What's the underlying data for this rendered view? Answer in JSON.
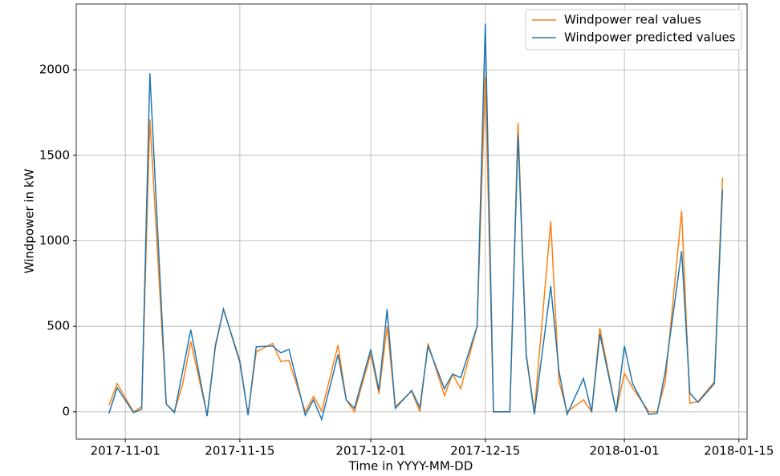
{
  "chart_data": {
    "type": "line",
    "xlabel": "Time in YYYY-MM-DD",
    "ylabel": "Windpower in kW",
    "x": [
      "2017-10-30",
      "2017-10-31",
      "2017-11-02",
      "2017-11-03",
      "2017-11-04",
      "2017-11-06",
      "2017-11-07",
      "2017-11-08",
      "2017-11-09",
      "2017-11-11",
      "2017-11-12",
      "2017-11-13",
      "2017-11-15",
      "2017-11-16",
      "2017-11-17",
      "2017-11-19",
      "2017-11-20",
      "2017-11-21",
      "2017-11-23",
      "2017-11-24",
      "2017-11-25",
      "2017-11-27",
      "2017-11-28",
      "2017-11-29",
      "2017-12-01",
      "2017-12-02",
      "2017-12-03",
      "2017-12-04",
      "2017-12-06",
      "2017-12-07",
      "2017-12-08",
      "2017-12-10",
      "2017-12-11",
      "2017-12-12",
      "2017-12-14",
      "2017-12-15",
      "2017-12-16",
      "2017-12-18",
      "2017-12-19",
      "2017-12-20",
      "2017-12-21",
      "2017-12-23",
      "2017-12-24",
      "2017-12-25",
      "2017-12-27",
      "2017-12-28",
      "2017-12-29",
      "2017-12-31",
      "2018-01-01",
      "2018-01-02",
      "2018-01-04",
      "2018-01-05",
      "2018-01-06",
      "2018-01-08",
      "2018-01-09",
      "2018-01-10",
      "2018-01-12",
      "2018-01-13"
    ],
    "series": [
      {
        "name": "Windpower real values",
        "color": "#ff7f0e",
        "values": [
          35,
          165,
          0,
          30,
          1710,
          45,
          0,
          160,
          410,
          -20,
          390,
          600,
          300,
          -15,
          350,
          400,
          295,
          300,
          0,
          90,
          5,
          390,
          70,
          0,
          340,
          105,
          500,
          30,
          120,
          0,
          400,
          95,
          220,
          135,
          500,
          1960,
          0,
          0,
          1690,
          340,
          0,
          1115,
          180,
          0,
          70,
          0,
          490,
          0,
          225,
          140,
          0,
          0,
          175,
          1175,
          50,
          60,
          175,
          1370
        ]
      },
      {
        "name": "Windpower predicted values",
        "color": "#1f77b4",
        "values": [
          -10,
          140,
          -5,
          15,
          1980,
          45,
          -5,
          235,
          480,
          -25,
          380,
          600,
          290,
          -20,
          380,
          385,
          345,
          365,
          -20,
          70,
          -45,
          335,
          70,
          20,
          365,
          125,
          600,
          20,
          125,
          25,
          385,
          135,
          220,
          200,
          500,
          2270,
          0,
          0,
          1620,
          330,
          -15,
          735,
          240,
          -15,
          195,
          0,
          455,
          0,
          385,
          165,
          -15,
          -10,
          235,
          940,
          110,
          55,
          165,
          1300
        ]
      }
    ],
    "xlim": [
      "2017-10-26",
      "2018-01-16"
    ],
    "xticks": [
      "2017-11-01",
      "2017-11-15",
      "2017-12-01",
      "2017-12-15",
      "2018-01-01",
      "2018-01-15"
    ],
    "ylim": [
      -160,
      2385
    ],
    "yticks": [
      0,
      500,
      1000,
      1500,
      2000
    ],
    "grid": true,
    "legend": "upper right"
  }
}
